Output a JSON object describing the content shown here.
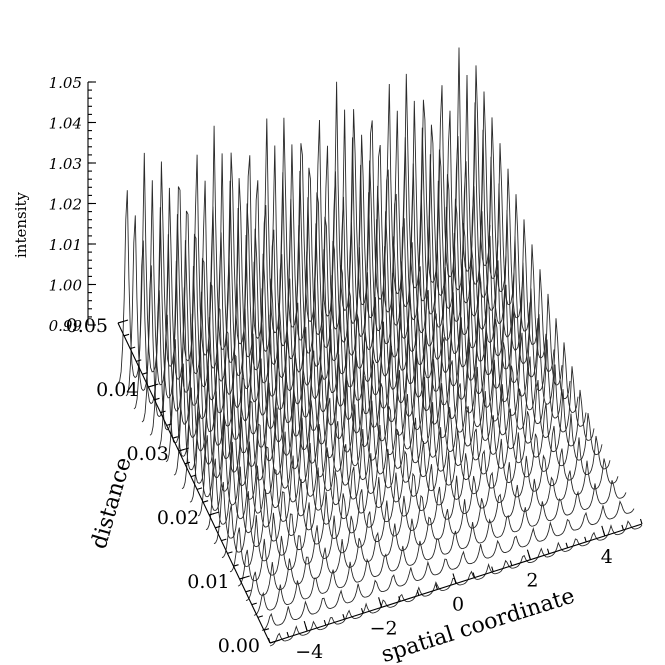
{
  "chart_data": {
    "type": "surface",
    "title": "",
    "x_axis": {
      "label": "spatial coordinate",
      "ticks": [
        -4,
        -2,
        0,
        2,
        4
      ],
      "tick_labels": [
        "−4",
        "−2",
        "0",
        "2",
        "4"
      ],
      "range": [
        -5,
        5
      ]
    },
    "y_axis": {
      "label": "distance",
      "ticks": [
        0.0,
        0.01,
        0.02,
        0.03,
        0.04,
        0.05
      ],
      "tick_labels": [
        "0.00",
        "0.01",
        "0.02",
        "0.03",
        "0.04",
        "0.05"
      ],
      "range": [
        0,
        0.05
      ]
    },
    "z_axis": {
      "label": "intensity",
      "ticks": [
        0.99,
        1.0,
        1.01,
        1.02,
        1.03,
        1.04,
        1.05
      ],
      "tick_labels": [
        "0.99",
        "1.00",
        "1.01",
        "1.02",
        "1.03",
        "1.04",
        "1.05"
      ],
      "range": [
        0.99,
        1.05
      ]
    },
    "surface": {
      "description_of_pattern": "periodic fringes along spatial coordinate",
      "fringe_period": 0.47,
      "mean_intensity": 1.0,
      "amplitude_at_distance_0": 0.002,
      "amplitude_at_distance_0.05": 0.04,
      "distance_samples": 20
    },
    "grid": false
  }
}
